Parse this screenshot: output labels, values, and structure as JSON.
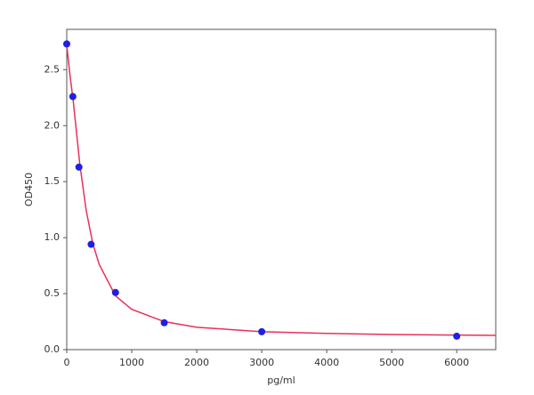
{
  "chart_data": {
    "type": "scatter",
    "x_label": "pg/ml",
    "y_label": "OD450",
    "xlim": [
      0,
      6600
    ],
    "ylim": [
      0,
      2.86
    ],
    "xticks": [
      0,
      1000,
      2000,
      3000,
      4000,
      5000,
      6000
    ],
    "yticks": [
      {
        "value": 0,
        "label": "0.0"
      },
      0.5,
      {
        "value": 1,
        "label": "1.0"
      },
      1.5,
      {
        "value": 2,
        "label": "2.0"
      },
      2.5
    ],
    "series": [
      {
        "color": "#e8305a",
        "mode": "line",
        "x": [
          0,
          50,
          100,
          200,
          300,
          400,
          500,
          750,
          1000,
          1500,
          2000,
          3000,
          4000,
          5000,
          6000,
          6600
        ],
        "values": [
          2.72,
          2.45,
          2.22,
          1.66,
          1.24,
          0.95,
          0.76,
          0.48,
          0.36,
          0.25,
          0.2,
          0.16,
          0.145,
          0.135,
          0.13,
          0.127
        ]
      },
      {
        "color": "#2020e0",
        "mode": "markers",
        "x": [
          0,
          93.75,
          187.5,
          375,
          750,
          1500,
          3000,
          6000
        ],
        "values": [
          2.73,
          2.26,
          1.63,
          0.94,
          0.51,
          0.24,
          0.16,
          0.12
        ]
      }
    ]
  }
}
